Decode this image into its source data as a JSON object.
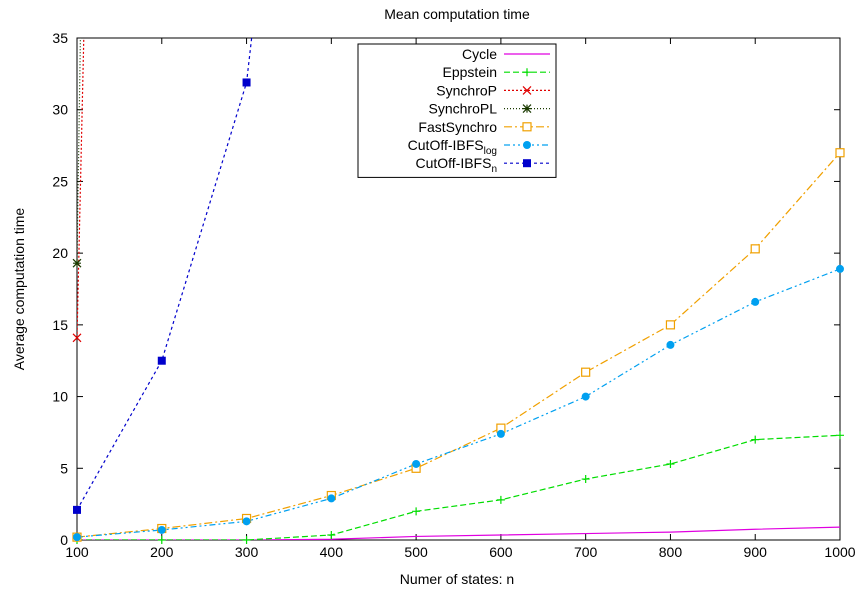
{
  "chart_data": {
    "type": "line",
    "title": "Mean computation time",
    "xlabel": "Numer of states: n",
    "ylabel": "Average computation time",
    "xlim": [
      100,
      1000
    ],
    "ylim": [
      0,
      35
    ],
    "x_ticks": [
      100,
      200,
      300,
      400,
      500,
      600,
      700,
      800,
      900,
      1000
    ],
    "y_ticks": [
      0,
      5,
      10,
      15,
      20,
      25,
      30,
      35
    ],
    "grid": false,
    "legend_position": "top-center",
    "series": [
      {
        "name": "Cycle",
        "legend_main": "Cycle",
        "legend_sub": "",
        "color": "#e000e0",
        "dash": "",
        "marker": "none",
        "points": [
          [
            100,
            0
          ],
          [
            200,
            0
          ],
          [
            300,
            0
          ],
          [
            400,
            0.05
          ],
          [
            500,
            0.25
          ],
          [
            600,
            0.35
          ],
          [
            700,
            0.45
          ],
          [
            800,
            0.55
          ],
          [
            900,
            0.75
          ],
          [
            1000,
            0.9
          ]
        ]
      },
      {
        "name": "Eppstein",
        "legend_main": "Eppstein",
        "legend_sub": "",
        "color": "#00dd00",
        "dash": "6,3",
        "marker": "plus",
        "points": [
          [
            100,
            0
          ],
          [
            200,
            0
          ],
          [
            300,
            0
          ],
          [
            400,
            0.35
          ],
          [
            500,
            2.0
          ],
          [
            600,
            2.8
          ],
          [
            700,
            4.25
          ],
          [
            800,
            5.3
          ],
          [
            900,
            7.0
          ],
          [
            1000,
            7.3
          ]
        ]
      },
      {
        "name": "SynchroP",
        "legend_main": "SynchroP",
        "legend_sub": "",
        "color": "#e00000",
        "dash": "2,2",
        "marker": "x",
        "points": [
          [
            100,
            14.1
          ],
          [
            108,
            35
          ]
        ]
      },
      {
        "name": "SynchroPL",
        "legend_main": "SynchroPL",
        "legend_sub": "",
        "color": "#1a3a00",
        "dash": "1,2",
        "marker": "star",
        "points": [
          [
            100,
            19.3
          ],
          [
            104,
            35
          ]
        ]
      },
      {
        "name": "FastSynchro",
        "legend_main": "FastSynchro",
        "legend_sub": "",
        "color": "#f0a000",
        "dash": "8,3,2,3",
        "marker": "square-open",
        "points": [
          [
            100,
            0.2
          ],
          [
            200,
            0.8
          ],
          [
            300,
            1.5
          ],
          [
            400,
            3.1
          ],
          [
            500,
            5.0
          ],
          [
            600,
            7.8
          ],
          [
            700,
            11.7
          ],
          [
            800,
            15.0
          ],
          [
            900,
            20.3
          ],
          [
            1000,
            27.0
          ]
        ]
      },
      {
        "name": "CutOff-IBFS_log",
        "legend_main": "CutOff-IBFS",
        "legend_sub": "log",
        "color": "#00a0f0",
        "dash": "6,3,2,3,2,3",
        "marker": "circle",
        "points": [
          [
            100,
            0.2
          ],
          [
            200,
            0.7
          ],
          [
            300,
            1.3
          ],
          [
            400,
            2.9
          ],
          [
            500,
            5.3
          ],
          [
            600,
            7.4
          ],
          [
            700,
            10.0
          ],
          [
            800,
            13.6
          ],
          [
            900,
            16.6
          ],
          [
            1000,
            18.9
          ]
        ]
      },
      {
        "name": "CutOff-IBFS_n",
        "legend_main": "CutOff-IBFS",
        "legend_sub": "n",
        "color": "#0000cc",
        "dash": "3,3",
        "marker": "square",
        "points": [
          [
            100,
            2.1
          ],
          [
            200,
            12.5
          ],
          [
            300,
            31.9
          ],
          [
            306,
            35
          ]
        ]
      }
    ]
  }
}
